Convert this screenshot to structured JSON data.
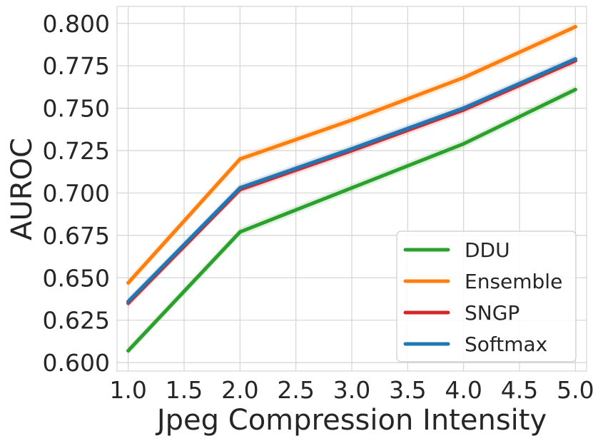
{
  "chart_data": {
    "type": "line",
    "title": "",
    "xlabel": "Jpeg Compression Intensity",
    "ylabel": "AUROC",
    "x": [
      1,
      2,
      3,
      4,
      5
    ],
    "xlim": [
      0.9,
      5.1
    ],
    "ylim": [
      0.595,
      0.81
    ],
    "xticks": [
      "1.0",
      "1.5",
      "2.0",
      "2.5",
      "3.0",
      "3.5",
      "4.0",
      "4.5",
      "5.0"
    ],
    "yticks": [
      "0.600",
      "0.625",
      "0.650",
      "0.675",
      "0.700",
      "0.725",
      "0.750",
      "0.775",
      "0.800"
    ],
    "grid": true,
    "legend_position": "lower-right",
    "series": [
      {
        "name": "DDU",
        "color": "#2ca02c",
        "values": [
          0.607,
          0.677,
          0.703,
          0.729,
          0.761
        ]
      },
      {
        "name": "Ensemble",
        "color": "#ff7f0e",
        "values": [
          0.647,
          0.72,
          0.743,
          0.768,
          0.798
        ]
      },
      {
        "name": "SNGP",
        "color": "#d62728",
        "values": [
          0.635,
          0.702,
          0.725,
          0.749,
          0.778
        ]
      },
      {
        "name": "Softmax",
        "color": "#1f77b4",
        "values": [
          0.636,
          0.703,
          0.726,
          0.75,
          0.779
        ]
      }
    ]
  }
}
